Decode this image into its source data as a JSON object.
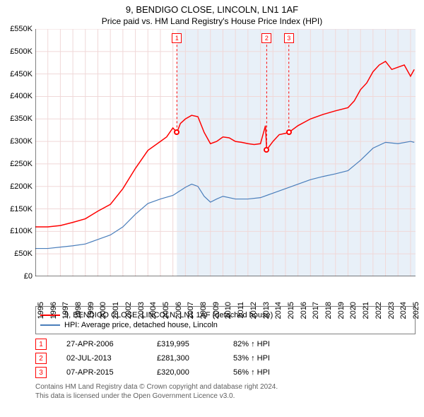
{
  "title": "9, BENDIGO CLOSE, LINCOLN, LN1 1AF",
  "subtitle": "Price paid vs. HM Land Registry's House Price Index (HPI)",
  "chart": {
    "type": "line",
    "background_color": "#ffffff",
    "grid_color": "#f0d8d8",
    "grid_stroke": 1,
    "axis_color": "#000000",
    "shade_color": "#e8f0f8",
    "shade_x_start": 2006.32,
    "shade_x_end": 2025.4,
    "xlim": [
      1995,
      2025.4
    ],
    "ylim": [
      0,
      550000
    ],
    "ytick_step": 50000,
    "yticks": [
      "£0",
      "£50K",
      "£100K",
      "£150K",
      "£200K",
      "£250K",
      "£300K",
      "£350K",
      "£400K",
      "£450K",
      "£500K",
      "£550K"
    ],
    "xticks": [
      1995,
      1996,
      1997,
      1998,
      1999,
      2000,
      2001,
      2002,
      2003,
      2004,
      2005,
      2006,
      2007,
      2008,
      2009,
      2010,
      2011,
      2012,
      2013,
      2014,
      2015,
      2016,
      2017,
      2018,
      2019,
      2020,
      2021,
      2022,
      2023,
      2024,
      2025
    ],
    "title_fontsize": 13,
    "subtitle_fontsize": 12,
    "tick_fontsize": 11,
    "series": [
      {
        "name": "property",
        "label": "9, BENDIGO CLOSE, LINCOLN, LN1 1AF (detached house)",
        "color": "#ff0000",
        "line_width": 1.5,
        "data": [
          [
            1995,
            110000
          ],
          [
            1996,
            110000
          ],
          [
            1997,
            113000
          ],
          [
            1998,
            120000
          ],
          [
            1999,
            128000
          ],
          [
            2000,
            145000
          ],
          [
            2001,
            160000
          ],
          [
            2002,
            195000
          ],
          [
            2003,
            240000
          ],
          [
            2004,
            280000
          ],
          [
            2005,
            300000
          ],
          [
            2005.5,
            310000
          ],
          [
            2006,
            330000
          ],
          [
            2006.32,
            319995
          ],
          [
            2006.6,
            340000
          ],
          [
            2007,
            350000
          ],
          [
            2007.5,
            358000
          ],
          [
            2008,
            355000
          ],
          [
            2008.5,
            320000
          ],
          [
            2009,
            295000
          ],
          [
            2009.5,
            300000
          ],
          [
            2010,
            310000
          ],
          [
            2010.5,
            308000
          ],
          [
            2011,
            300000
          ],
          [
            2011.5,
            298000
          ],
          [
            2012,
            295000
          ],
          [
            2012.5,
            293000
          ],
          [
            2013,
            295000
          ],
          [
            2013.4,
            335000
          ],
          [
            2013.5,
            281300
          ],
          [
            2014,
            300000
          ],
          [
            2014.5,
            315000
          ],
          [
            2015,
            318000
          ],
          [
            2015.27,
            320000
          ],
          [
            2016,
            335000
          ],
          [
            2017,
            350000
          ],
          [
            2018,
            360000
          ],
          [
            2019,
            368000
          ],
          [
            2020,
            375000
          ],
          [
            2020.5,
            390000
          ],
          [
            2021,
            415000
          ],
          [
            2021.5,
            430000
          ],
          [
            2022,
            455000
          ],
          [
            2022.5,
            470000
          ],
          [
            2023,
            478000
          ],
          [
            2023.5,
            460000
          ],
          [
            2024,
            465000
          ],
          [
            2024.5,
            470000
          ],
          [
            2025,
            445000
          ],
          [
            2025.3,
            460000
          ]
        ]
      },
      {
        "name": "hpi",
        "label": "HPI: Average price, detached house, Lincoln",
        "color": "#4a7ebb",
        "line_width": 1.2,
        "data": [
          [
            1995,
            62000
          ],
          [
            1996,
            62000
          ],
          [
            1997,
            65000
          ],
          [
            1998,
            68000
          ],
          [
            1999,
            72000
          ],
          [
            2000,
            82000
          ],
          [
            2001,
            92000
          ],
          [
            2002,
            110000
          ],
          [
            2003,
            138000
          ],
          [
            2004,
            162000
          ],
          [
            2005,
            172000
          ],
          [
            2006,
            180000
          ],
          [
            2007,
            198000
          ],
          [
            2007.5,
            205000
          ],
          [
            2008,
            200000
          ],
          [
            2008.5,
            178000
          ],
          [
            2009,
            165000
          ],
          [
            2009.5,
            172000
          ],
          [
            2010,
            178000
          ],
          [
            2011,
            172000
          ],
          [
            2012,
            172000
          ],
          [
            2013,
            175000
          ],
          [
            2014,
            185000
          ],
          [
            2015,
            195000
          ],
          [
            2016,
            205000
          ],
          [
            2017,
            215000
          ],
          [
            2018,
            222000
          ],
          [
            2019,
            228000
          ],
          [
            2020,
            235000
          ],
          [
            2021,
            258000
          ],
          [
            2022,
            285000
          ],
          [
            2023,
            298000
          ],
          [
            2024,
            295000
          ],
          [
            2025,
            300000
          ],
          [
            2025.3,
            298000
          ]
        ]
      }
    ],
    "transaction_markers": [
      {
        "n": "1",
        "x": 2006.32,
        "y": 319995,
        "marker_top_y": 540000
      },
      {
        "n": "2",
        "x": 2013.5,
        "y": 281300,
        "marker_top_y": 540000
      },
      {
        "n": "3",
        "x": 2015.27,
        "y": 320000,
        "marker_top_y": 540000
      }
    ],
    "marker_line_color": "#ff0000",
    "marker_line_dash": "3,3"
  },
  "legend": {
    "border_color": "#808080",
    "fontsize": 11,
    "items": [
      {
        "color": "#ff0000",
        "label": "9, BENDIGO CLOSE, LINCOLN, LN1 1AF (detached house)"
      },
      {
        "color": "#4a7ebb",
        "label": "HPI: Average price, detached house, Lincoln"
      }
    ]
  },
  "transactions_table": {
    "fontsize": 11,
    "marker_border_color": "#ff0000",
    "marker_text_color": "#ff0000",
    "rows": [
      {
        "n": "1",
        "date": "27-APR-2006",
        "price": "£319,995",
        "hpi": "82% ↑ HPI"
      },
      {
        "n": "2",
        "date": "02-JUL-2013",
        "price": "£281,300",
        "hpi": "53% ↑ HPI"
      },
      {
        "n": "3",
        "date": "07-APR-2015",
        "price": "£320,000",
        "hpi": "56% ↑ HPI"
      }
    ]
  },
  "footer": {
    "line1": "Contains HM Land Registry data © Crown copyright and database right 2024.",
    "line2": "This data is licensed under the Open Government Licence v3.0.",
    "color": "#606060",
    "fontsize": 10
  }
}
